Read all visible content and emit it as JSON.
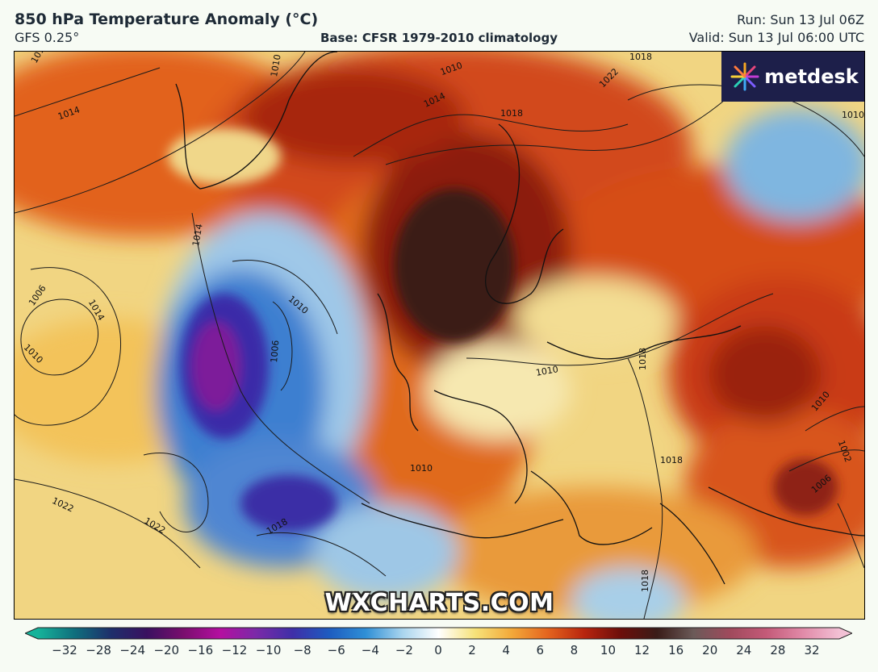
{
  "header": {
    "title": "850 hPa Temperature Anomaly (°C)",
    "model": "GFS 0.25°",
    "base": "Base: CFSR 1979-2010 climatology",
    "run": "Run: Sun 13 Jul 06Z",
    "valid": "Valid: Sun 13 Jul 06:00 UTC"
  },
  "logo": {
    "text": "metdesk"
  },
  "watermark": "WXCHARTS.COM",
  "contours": [
    {
      "label": "1010"
    },
    {
      "label": "1014"
    },
    {
      "label": "1010"
    },
    {
      "label": "1014"
    },
    {
      "label": "1018"
    },
    {
      "label": "1018"
    },
    {
      "label": "1022"
    },
    {
      "label": "1010"
    },
    {
      "label": "1014"
    },
    {
      "label": "1010"
    },
    {
      "label": "1006"
    },
    {
      "label": "1014"
    },
    {
      "label": "1010"
    },
    {
      "label": "1010"
    },
    {
      "label": "1006"
    },
    {
      "label": "1010"
    },
    {
      "label": "1018"
    },
    {
      "label": "1010"
    },
    {
      "label": "1018"
    },
    {
      "label": "1022"
    },
    {
      "label": "1022"
    },
    {
      "label": "1018"
    },
    {
      "label": "1010"
    },
    {
      "label": "1002"
    },
    {
      "label": "1006"
    },
    {
      "label": "1018"
    }
  ],
  "colorbar": {
    "ticks": [
      "−32",
      "−28",
      "−24",
      "−20",
      "−16",
      "−12",
      "−10",
      "−8",
      "−6",
      "−4",
      "−2",
      "0",
      "2",
      "4",
      "6",
      "8",
      "10",
      "12",
      "16",
      "20",
      "24",
      "28",
      "32"
    ],
    "colors": [
      "#16b39a",
      "#0f6f7d",
      "#1e2f6b",
      "#3a1060",
      "#7a0e6e",
      "#b40fa0",
      "#7a2aa8",
      "#3e2fa8",
      "#1d5cc0",
      "#2f8fd6",
      "#a8d4ee",
      "#ffffff",
      "#f6e27a",
      "#f3a93a",
      "#e4641e",
      "#b8250e",
      "#6c0e0a",
      "#3a1c18",
      "#6b5a58",
      "#a04a5c",
      "#c45a78",
      "#e18aa8",
      "#f2c0d4"
    ]
  }
}
